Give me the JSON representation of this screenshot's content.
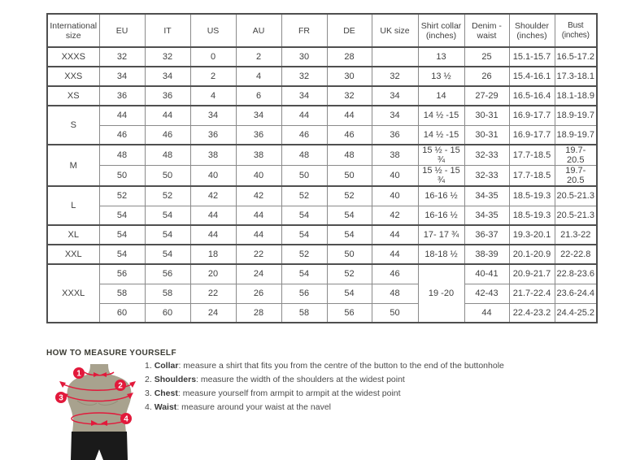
{
  "colors": {
    "accent_red": "#e2193b",
    "mannequin_body": "#a8a28e",
    "mannequin_shorts": "#1a1a1a",
    "table_border": "#8a8a8a",
    "table_border_strong": "#4f4f4f",
    "text": "#404040"
  },
  "size_table": {
    "headers": [
      "International size",
      "EU",
      "IT",
      "US",
      "AU",
      "FR",
      "DE",
      "UK size",
      "Shirt collar (inches)",
      "Denim - waist",
      "Shoulder (inches)",
      "Bust (inches)"
    ],
    "rows": [
      {
        "g": true,
        "cells": [
          {
            "t": "XXXS",
            "sz": true
          },
          {
            "t": "32"
          },
          {
            "t": "32"
          },
          {
            "t": "0"
          },
          {
            "t": "2"
          },
          {
            "t": "30"
          },
          {
            "t": "28"
          },
          {
            "t": ""
          },
          {
            "t": "13"
          },
          {
            "t": "25"
          },
          {
            "t": "15.1-15.7"
          },
          {
            "t": "16.5-17.2"
          }
        ]
      },
      {
        "g": true,
        "cells": [
          {
            "t": "XXS",
            "sz": true
          },
          {
            "t": "34"
          },
          {
            "t": "34"
          },
          {
            "t": "2"
          },
          {
            "t": "4"
          },
          {
            "t": "32"
          },
          {
            "t": "30"
          },
          {
            "t": "32"
          },
          {
            "t": "13 ½"
          },
          {
            "t": "26"
          },
          {
            "t": "15.4-16.1"
          },
          {
            "t": "17.3-18.1"
          }
        ]
      },
      {
        "g": true,
        "cells": [
          {
            "t": "XS",
            "sz": true
          },
          {
            "t": "36"
          },
          {
            "t": "36"
          },
          {
            "t": "4"
          },
          {
            "t": "6"
          },
          {
            "t": "34"
          },
          {
            "t": "32"
          },
          {
            "t": "34"
          },
          {
            "t": "14"
          },
          {
            "t": "27-29"
          },
          {
            "t": "16.5-16.4"
          },
          {
            "t": "18.1-18.9"
          }
        ]
      },
      {
        "g": true,
        "cells": [
          {
            "t": "S",
            "sz": true,
            "rs": 2
          },
          {
            "t": "44"
          },
          {
            "t": "44"
          },
          {
            "t": "34"
          },
          {
            "t": "34"
          },
          {
            "t": "44"
          },
          {
            "t": "44"
          },
          {
            "t": "34"
          },
          {
            "t": "14 ½ -15"
          },
          {
            "t": "30-31"
          },
          {
            "t": "16.9-17.7"
          },
          {
            "t": "18.9-19.7"
          }
        ]
      },
      {
        "cells": [
          {
            "t": "46"
          },
          {
            "t": "46"
          },
          {
            "t": "36"
          },
          {
            "t": "36"
          },
          {
            "t": "46"
          },
          {
            "t": "46"
          },
          {
            "t": "36"
          },
          {
            "t": "14 ½ -15"
          },
          {
            "t": "30-31"
          },
          {
            "t": "16.9-17.7"
          },
          {
            "t": "18.9-19.7"
          }
        ]
      },
      {
        "g": true,
        "cells": [
          {
            "t": "M",
            "sz": true,
            "rs": 2
          },
          {
            "t": "48"
          },
          {
            "t": "48"
          },
          {
            "t": "38"
          },
          {
            "t": "38"
          },
          {
            "t": "48"
          },
          {
            "t": "48"
          },
          {
            "t": "38"
          },
          {
            "t": "15 ½ - 15 ¾"
          },
          {
            "t": "32-33"
          },
          {
            "t": "17.7-18.5"
          },
          {
            "t": "19.7- 20.5"
          }
        ]
      },
      {
        "cells": [
          {
            "t": "50"
          },
          {
            "t": "50"
          },
          {
            "t": "40"
          },
          {
            "t": "40"
          },
          {
            "t": "50"
          },
          {
            "t": "50"
          },
          {
            "t": "40"
          },
          {
            "t": "15 ½ - 15 ¾"
          },
          {
            "t": "32-33"
          },
          {
            "t": "17.7-18.5"
          },
          {
            "t": "19.7- 20.5"
          }
        ]
      },
      {
        "g": true,
        "cells": [
          {
            "t": "L",
            "sz": true,
            "rs": 2
          },
          {
            "t": "52"
          },
          {
            "t": "52"
          },
          {
            "t": "42"
          },
          {
            "t": "42"
          },
          {
            "t": "52"
          },
          {
            "t": "52"
          },
          {
            "t": "40"
          },
          {
            "t": "16-16 ½"
          },
          {
            "t": "34-35"
          },
          {
            "t": "18.5-19.3"
          },
          {
            "t": "20.5-21.3"
          }
        ]
      },
      {
        "cells": [
          {
            "t": "54"
          },
          {
            "t": "54"
          },
          {
            "t": "44"
          },
          {
            "t": "44"
          },
          {
            "t": "54"
          },
          {
            "t": "54"
          },
          {
            "t": "42"
          },
          {
            "t": "16-16 ½"
          },
          {
            "t": "34-35"
          },
          {
            "t": "18.5-19.3"
          },
          {
            "t": "20.5-21.3"
          }
        ]
      },
      {
        "g": true,
        "cells": [
          {
            "t": "XL",
            "sz": true
          },
          {
            "t": "54"
          },
          {
            "t": "54"
          },
          {
            "t": "44"
          },
          {
            "t": "44"
          },
          {
            "t": "54"
          },
          {
            "t": "54"
          },
          {
            "t": "44"
          },
          {
            "t": "17- 17 ¾"
          },
          {
            "t": "36-37"
          },
          {
            "t": "19.3-20.1"
          },
          {
            "t": "21.3-22"
          }
        ]
      },
      {
        "g": true,
        "cells": [
          {
            "t": "XXL",
            "sz": true
          },
          {
            "t": "54"
          },
          {
            "t": "54"
          },
          {
            "t": "18"
          },
          {
            "t": "22"
          },
          {
            "t": "52"
          },
          {
            "t": "50"
          },
          {
            "t": "44"
          },
          {
            "t": "18-18 ½"
          },
          {
            "t": "38-39"
          },
          {
            "t": "20.1-20.9"
          },
          {
            "t": "22-22.8"
          }
        ]
      },
      {
        "g": true,
        "cells": [
          {
            "t": "XXXL",
            "sz": true,
            "rs": 3
          },
          {
            "t": "56"
          },
          {
            "t": "56"
          },
          {
            "t": "20"
          },
          {
            "t": "24"
          },
          {
            "t": "54"
          },
          {
            "t": "52"
          },
          {
            "t": "46"
          },
          {
            "t": "19 -20",
            "rs": 3
          },
          {
            "t": "40-41"
          },
          {
            "t": "20.9-21.7"
          },
          {
            "t": "22.8-23.6"
          }
        ]
      },
      {
        "cells": [
          {
            "t": "58"
          },
          {
            "t": "58"
          },
          {
            "t": "22"
          },
          {
            "t": "26"
          },
          {
            "t": "56"
          },
          {
            "t": "54"
          },
          {
            "t": "48"
          },
          {
            "t": "42-43"
          },
          {
            "t": "21.7-22.4"
          },
          {
            "t": "23.6-24.4"
          }
        ]
      },
      {
        "cells": [
          {
            "t": "60"
          },
          {
            "t": "60"
          },
          {
            "t": "24"
          },
          {
            "t": "28"
          },
          {
            "t": "58"
          },
          {
            "t": "56"
          },
          {
            "t": "50"
          },
          {
            "t": "44"
          },
          {
            "t": "22.4-23.2"
          },
          {
            "t": "24.4-25.2"
          }
        ]
      }
    ]
  },
  "measure": {
    "heading": "HOW TO MEASURE YOURSELF",
    "items": [
      {
        "num": "1.",
        "label": "Collar",
        "text": ": measure a shirt that fits you from the centre of the button to the end of the buttonhole"
      },
      {
        "num": "2.",
        "label": "Shoulders",
        "text": ": measure the width of the shoulders at the widest point"
      },
      {
        "num": "3.",
        "label": "Chest",
        "text": ": measure yourself from armpit to armpit at the widest point"
      },
      {
        "num": "4.",
        "label": "Waist",
        "text": ": measure around your waist at the navel"
      }
    ]
  },
  "figure": {
    "badges": [
      "1",
      "2",
      "3",
      "4"
    ]
  }
}
